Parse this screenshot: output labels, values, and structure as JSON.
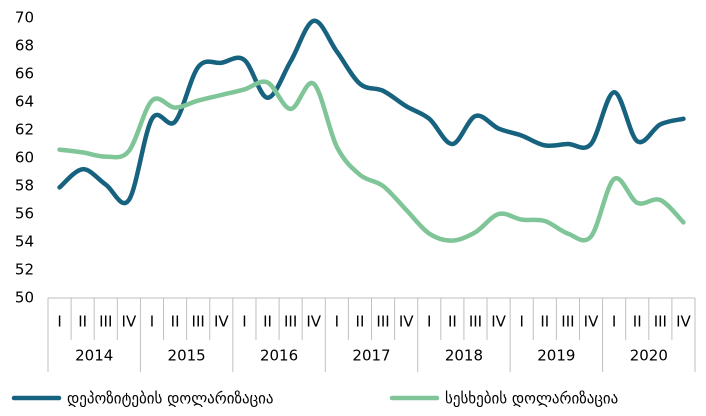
{
  "chart_data": {
    "type": "line",
    "categories": [
      "I",
      "II",
      "III",
      "IV",
      "I",
      "II",
      "III",
      "IV",
      "I",
      "II",
      "III",
      "IV",
      "I",
      "II",
      "III",
      "IV",
      "I",
      "II",
      "III",
      "IV",
      "I",
      "II",
      "III",
      "IV",
      "I",
      "II",
      "III",
      "IV"
    ],
    "groups": [
      "2014",
      "2015",
      "2016",
      "2017",
      "2018",
      "2019",
      "2020"
    ],
    "series": [
      {
        "name": "დეპოზიტების დოლარიზაცია",
        "color": "#17627f",
        "values": [
          57.9,
          59.2,
          58.1,
          57.0,
          62.8,
          62.6,
          66.5,
          66.8,
          67.0,
          64.3,
          66.9,
          69.8,
          67.6,
          65.3,
          64.8,
          63.7,
          62.8,
          61.0,
          63.0,
          62.1,
          61.6,
          60.9,
          61.0,
          61.0,
          64.7,
          61.2,
          62.4,
          62.8
        ]
      },
      {
        "name": "სესხების დოლარიზაცია",
        "color": "#7fc598",
        "values": [
          60.6,
          60.4,
          60.1,
          60.5,
          64.1,
          63.6,
          64.1,
          64.5,
          64.9,
          65.4,
          63.5,
          65.3,
          60.8,
          58.8,
          58.0,
          56.3,
          54.6,
          54.1,
          54.7,
          56.0,
          55.6,
          55.5,
          54.6,
          54.4,
          58.5,
          56.8,
          57.0,
          55.4
        ]
      }
    ],
    "ylim": [
      50,
      70
    ],
    "yticks": [
      50,
      52,
      54,
      56,
      58,
      60,
      62,
      64,
      66,
      68,
      70
    ],
    "legend": "bottom"
  }
}
